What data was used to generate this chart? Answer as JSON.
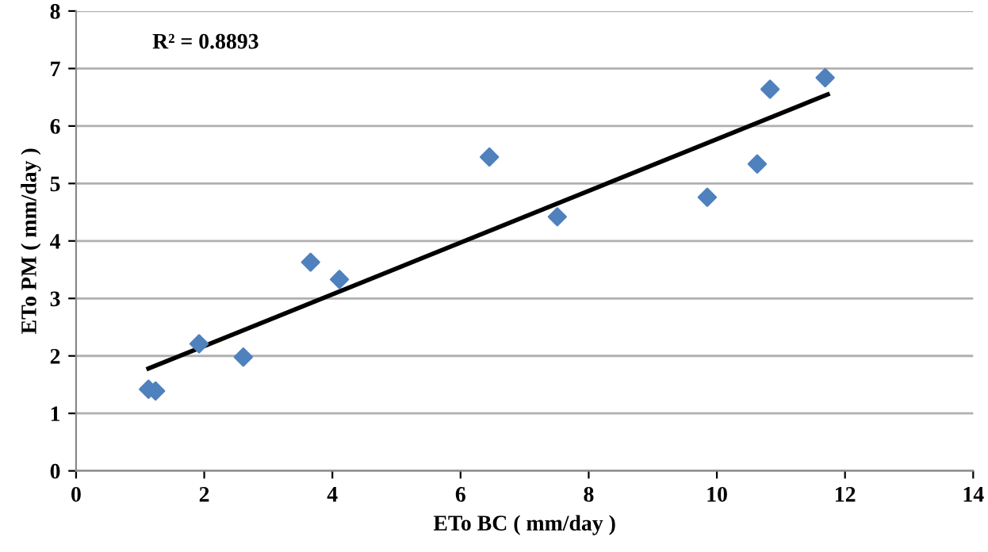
{
  "chart_data": {
    "type": "scatter",
    "xlabel": "ETo BC ( mm/day )",
    "ylabel": "ETo PM ( mm/day )",
    "annotations": [
      "R² = 0.8893"
    ],
    "series": [
      {
        "color": "#4f81bd",
        "marker": "diamond",
        "x": [
          1.13,
          1.24,
          1.92,
          2.61,
          3.66,
          4.11,
          6.45,
          7.51,
          9.85,
          10.63,
          10.83,
          11.69
        ],
        "values": [
          1.42,
          1.39,
          2.21,
          1.98,
          3.63,
          3.33,
          5.46,
          4.42,
          4.76,
          5.34,
          6.64,
          6.84
        ]
      },
      {
        "type": "line",
        "color": "#000000",
        "marker": "none",
        "line_style": "solid",
        "x": [
          1.13,
          11.73
        ],
        "values": [
          1.78,
          6.55
        ]
      }
    ],
    "xlim": [
      0,
      14
    ],
    "xticks": [
      0,
      2,
      4,
      6,
      8,
      10,
      12,
      14
    ],
    "ylim": [
      0,
      8
    ],
    "yticks": [
      0,
      1,
      2,
      3,
      4,
      5,
      6,
      7,
      8
    ],
    "grid": "y"
  }
}
